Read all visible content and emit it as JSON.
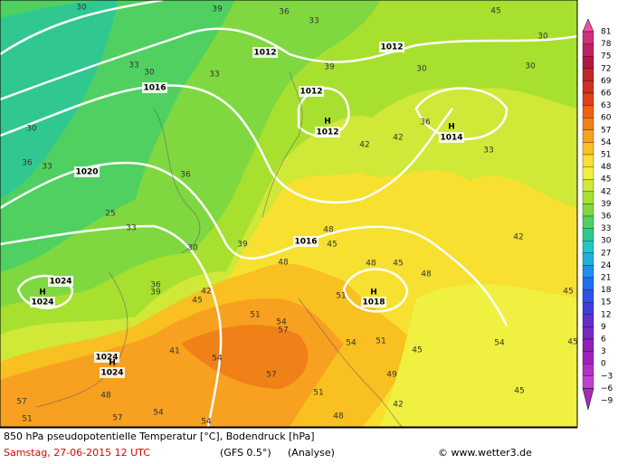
{
  "map": {
    "labels": [
      "1012",
      "1012",
      "1016",
      "1012",
      "1012",
      "1014",
      "1020",
      "1016",
      "1024",
      "1024",
      "1018",
      "1024",
      "1024",
      "H",
      "H",
      "H",
      "H",
      "H",
      "30",
      "39",
      "36",
      "33",
      "45",
      "33",
      "30",
      "33",
      "39",
      "30",
      "30",
      "30",
      "36",
      "42",
      "42",
      "33",
      "30",
      "36",
      "33",
      "36",
      "25",
      "33",
      "30",
      "39",
      "42",
      "48",
      "45",
      "48",
      "51",
      "48",
      "45",
      "48",
      "42",
      "45",
      "36",
      "39",
      "45",
      "51",
      "54",
      "57",
      "54",
      "51",
      "41",
      "54",
      "45",
      "54",
      "45",
      "57",
      "45",
      "51",
      "48",
      "48",
      "54",
      "54",
      "42",
      "57",
      "51",
      "57",
      "49"
    ]
  },
  "colorbar": {
    "labels": [
      "81",
      "78",
      "75",
      "72",
      "69",
      "66",
      "63",
      "60",
      "57",
      "54",
      "51",
      "48",
      "45",
      "42",
      "39",
      "36",
      "33",
      "30",
      "27",
      "24",
      "21",
      "18",
      "15",
      "12",
      "9",
      "6",
      "3",
      "0",
      "−3",
      "−6",
      "−9"
    ],
    "colors": [
      "#f0509a",
      "#d0307a",
      "#c02060",
      "#b01840",
      "#c02828",
      "#d03020",
      "#e04018",
      "#f06010",
      "#f08018",
      "#f8a020",
      "#f8c020",
      "#f8e030",
      "#f0f040",
      "#d0e838",
      "#a8e030",
      "#80d840",
      "#50d060",
      "#30c890",
      "#20c8c0",
      "#20b0e0",
      "#2090f0",
      "#2070f0",
      "#3050e8",
      "#4040d8",
      "#6030c8",
      "#7828c0",
      "#9020b8",
      "#a020c0",
      "#b030c8",
      "#c040d0",
      "#a030b0"
    ]
  },
  "footer": {
    "title": "850 hPa pseudopotentielle Temperatur [°C], Bodendruck [hPa]",
    "date": "Samstag, 27-06-2015  12 UTC",
    "model": "(GFS 0.5°)",
    "kind": "(Analyse)",
    "source": "© www.wetter3.de"
  }
}
